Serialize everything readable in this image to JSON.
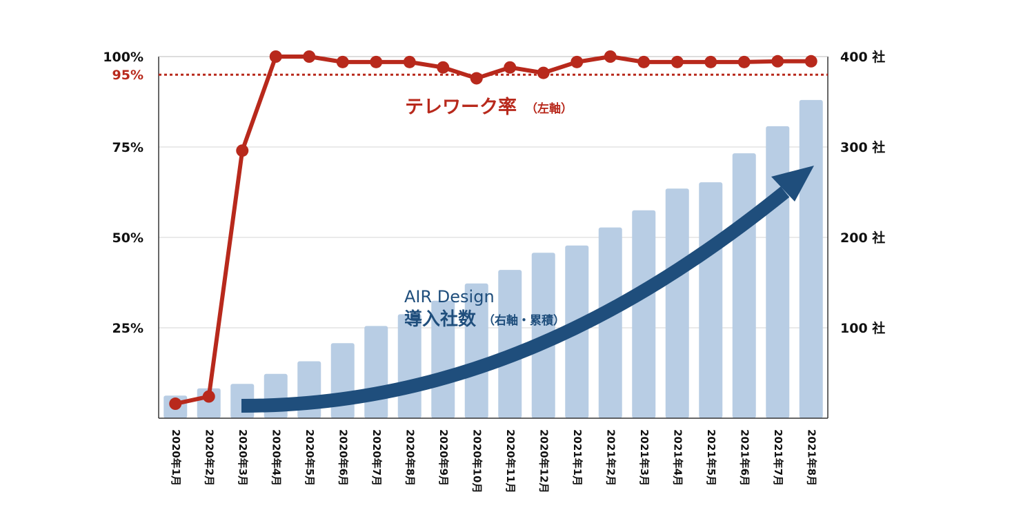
{
  "chart_data": {
    "type": "bar+line",
    "categories": [
      "2020年1月",
      "2020年2月",
      "2020年3月",
      "2020年4月",
      "2020年5月",
      "2020年6月",
      "2020年7月",
      "2020年8月",
      "2020年9月",
      "2020年10月",
      "2020年11月",
      "2020年12月",
      "2021年1月",
      "2021年2月",
      "2021年3月",
      "2021年4月",
      "2021年5月",
      "2021年6月",
      "2021年7月",
      "2021年8月"
    ],
    "line_series": {
      "axis": "left",
      "values": [
        4,
        6,
        74,
        100,
        100,
        98.5,
        98.5,
        98.5,
        97,
        94,
        97,
        95.5,
        98.5,
        100,
        98.5,
        98.5,
        98.5,
        98.5,
        98.7,
        98.7
      ],
      "color": "#b8291c"
    },
    "bar_series": {
      "axis": "right",
      "values": [
        25,
        33,
        38,
        49,
        63,
        83,
        102,
        115,
        130,
        149,
        164,
        183,
        191,
        211,
        230,
        254,
        261,
        293,
        323,
        352
      ],
      "color": "#b8cde4"
    },
    "left_axis": {
      "ylim": [
        0,
        100
      ],
      "ticks": [
        {
          "value": 100,
          "label": "100%"
        },
        {
          "value": 75,
          "label": "75%"
        },
        {
          "value": 50,
          "label": "50%"
        },
        {
          "value": 25,
          "label": "25%"
        }
      ]
    },
    "right_axis": {
      "ylim": [
        0,
        400
      ],
      "ticks": [
        {
          "value": 400,
          "label": "400 社"
        },
        {
          "value": 300,
          "label": "300 社"
        },
        {
          "value": 200,
          "label": "200 社"
        },
        {
          "value": 100,
          "label": "100 社"
        }
      ]
    },
    "reference_line": {
      "value": 95,
      "label": "95%",
      "color": "#b8291c"
    },
    "annotations": {
      "telework": {
        "main": "テレワーク率",
        "sub": "（左軸）"
      },
      "air_design": {
        "line1": "AIR Design",
        "line2": "導入社数",
        "sub": "（右軸・累積）"
      }
    },
    "grid": true,
    "arrow_color": "#1f4e7c"
  }
}
